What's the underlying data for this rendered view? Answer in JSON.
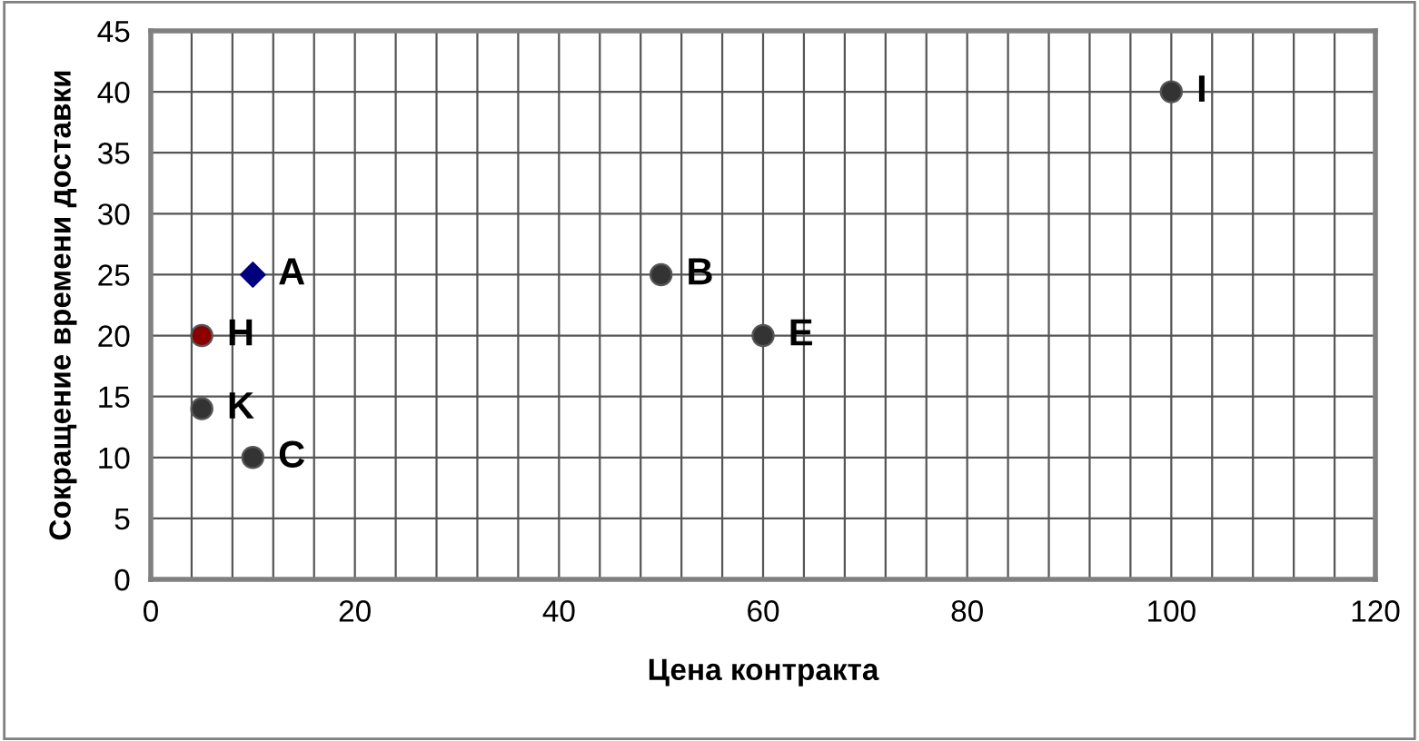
{
  "chart_data": {
    "type": "scatter",
    "xlabel": "Цена контракта",
    "ylabel": "Сокращение времени доставки",
    "series": [
      {
        "name": "A",
        "x": [
          10
        ],
        "values": [
          25
        ],
        "color": "#00007f",
        "marker": "diamond"
      },
      {
        "name": "B",
        "x": [
          50
        ],
        "values": [
          25
        ],
        "color": "#333333",
        "marker": "circle"
      },
      {
        "name": "E",
        "x": [
          60
        ],
        "values": [
          20
        ],
        "color": "#333333",
        "marker": "circle"
      },
      {
        "name": "I",
        "x": [
          100
        ],
        "values": [
          40
        ],
        "color": "#333333",
        "marker": "circle"
      },
      {
        "name": "H",
        "x": [
          5
        ],
        "values": [
          20
        ],
        "color": "#8b0000",
        "marker": "circle"
      },
      {
        "name": "K",
        "x": [
          5
        ],
        "values": [
          14
        ],
        "color": "#333333",
        "marker": "circle"
      },
      {
        "name": "C",
        "x": [
          10
        ],
        "values": [
          10
        ],
        "color": "#333333",
        "marker": "circle"
      }
    ],
    "xlim": [
      0,
      120
    ],
    "ylim": [
      0,
      45
    ],
    "xticks": [
      0,
      {
        "value": 4,
        "label": null
      },
      {
        "value": 8,
        "label": null
      },
      {
        "value": 12,
        "label": null
      },
      {
        "value": 16,
        "label": null
      },
      20,
      {
        "value": 24,
        "label": null
      },
      {
        "value": 28,
        "label": null
      },
      {
        "value": 32,
        "label": null
      },
      {
        "value": 36,
        "label": null
      },
      40,
      {
        "value": 44,
        "label": null
      },
      {
        "value": 48,
        "label": null
      },
      {
        "value": 52,
        "label": null
      },
      {
        "value": 56,
        "label": null
      },
      60,
      {
        "value": 64,
        "label": null
      },
      {
        "value": 68,
        "label": null
      },
      {
        "value": 72,
        "label": null
      },
      {
        "value": 76,
        "label": null
      },
      80,
      {
        "value": 84,
        "label": null
      },
      {
        "value": 88,
        "label": null
      },
      {
        "value": 92,
        "label": null
      },
      {
        "value": 96,
        "label": null
      },
      100,
      {
        "value": 104,
        "label": null
      },
      {
        "value": 108,
        "label": null
      },
      {
        "value": 112,
        "label": null
      },
      {
        "value": 116,
        "label": null
      },
      120
    ],
    "yticks": [
      0,
      5,
      10,
      15,
      20,
      25,
      30,
      35,
      40,
      45
    ],
    "grid": true,
    "legend": false
  }
}
